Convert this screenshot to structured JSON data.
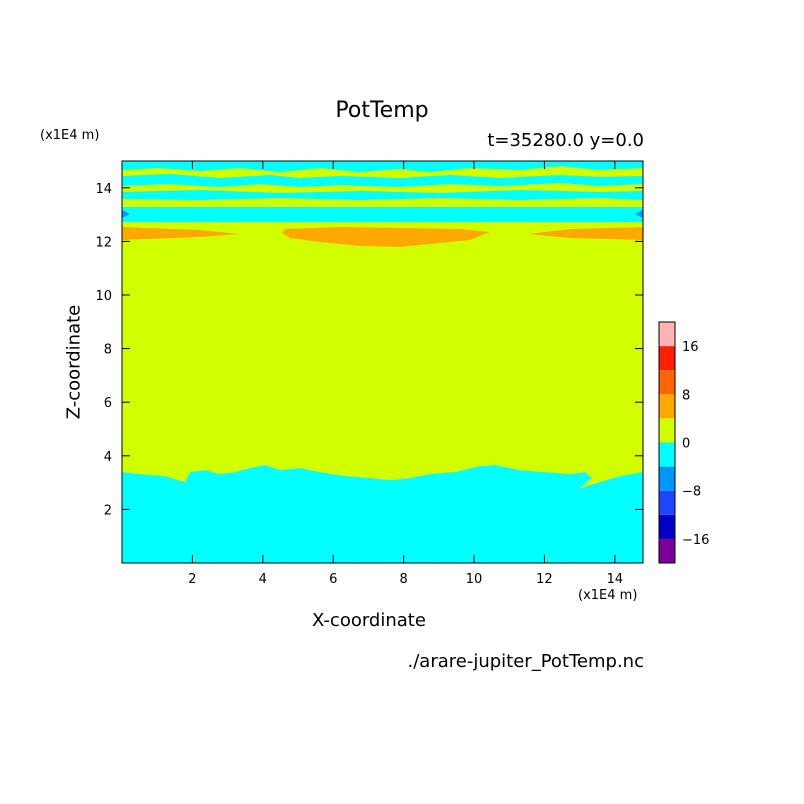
{
  "chart_data": {
    "type": "heatmap",
    "title": "PotTemp",
    "subtitle": "t=35280.0 y=0.0",
    "xlabel": "X-coordinate",
    "ylabel": "Z-coordinate",
    "xunit": "(x1E4 m)",
    "yunit": "(x1E4 m)",
    "xlim": [
      0,
      14.8
    ],
    "ylim": [
      0,
      15
    ],
    "xticks": [
      2,
      4,
      6,
      8,
      10,
      12,
      14
    ],
    "yticks": [
      2,
      4,
      6,
      8,
      10,
      12,
      14
    ],
    "colorbar": {
      "levels": [
        -20,
        -16,
        -12,
        -8,
        -4,
        0,
        4,
        8,
        12,
        16,
        20
      ],
      "colors": [
        "#7a0099",
        "#0000c8",
        "#1e46ff",
        "#0096ff",
        "#00ffff",
        "#d2ff00",
        "#ffa800",
        "#ff6400",
        "#ff1e00",
        "#ffb4b4"
      ],
      "tick_labels": [
        {
          "value": 16,
          "label": "16"
        },
        {
          "value": 8,
          "label": "8"
        },
        {
          "value": 0,
          "label": "0"
        },
        {
          "value": -8,
          "label": "−8"
        },
        {
          "value": -16,
          "label": "−16"
        }
      ]
    },
    "regions": [
      {
        "z_range": [
          0,
          3.3
        ],
        "class": "-4 to 0"
      },
      {
        "z_range": [
          3.3,
          11.8
        ],
        "class": "0 to 4"
      },
      {
        "z_range": [
          11.8,
          12.4
        ],
        "class": "4 to 8"
      },
      {
        "z_range": [
          12.4,
          15
        ],
        "class": "alternating -4 to 0 / 0 to 4"
      }
    ]
  },
  "footer": {
    "filename": "./arare-jupiter_PotTemp.nc"
  }
}
